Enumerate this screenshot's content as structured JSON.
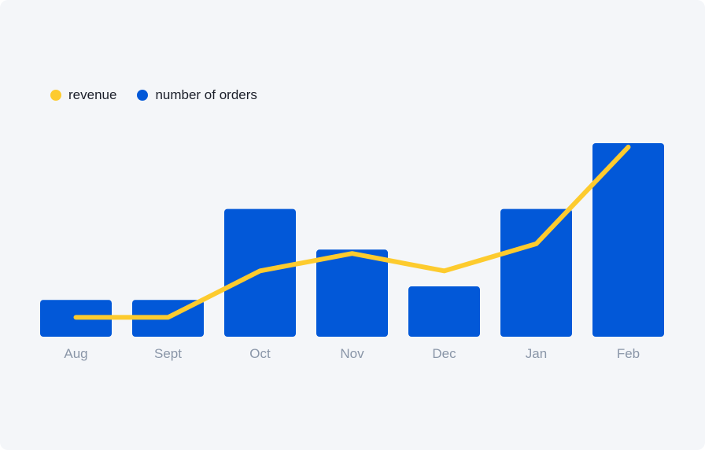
{
  "chart_data": {
    "type": "bar",
    "title": "",
    "xlabel": "",
    "ylabel": "",
    "categories": [
      "Aug",
      "Sept",
      "Oct",
      "Nov",
      "Dec",
      "Jan",
      "Feb"
    ],
    "ylim": [
      0,
      100
    ],
    "grid": false,
    "legend_position": "top-left",
    "series": [
      {
        "name": "number of orders",
        "kind": "bar",
        "color": "#0258d8",
        "values": [
          19,
          19,
          66,
          45,
          26,
          66,
          100
        ]
      },
      {
        "name": "revenue",
        "kind": "line",
        "color": "#fdcb2e",
        "values": [
          10,
          10,
          34,
          43,
          34,
          48,
          98
        ]
      }
    ]
  },
  "legend": {
    "items": [
      {
        "label": "revenue",
        "color": "#fdcb2e"
      },
      {
        "label": "number of orders",
        "color": "#0258d8"
      }
    ]
  }
}
